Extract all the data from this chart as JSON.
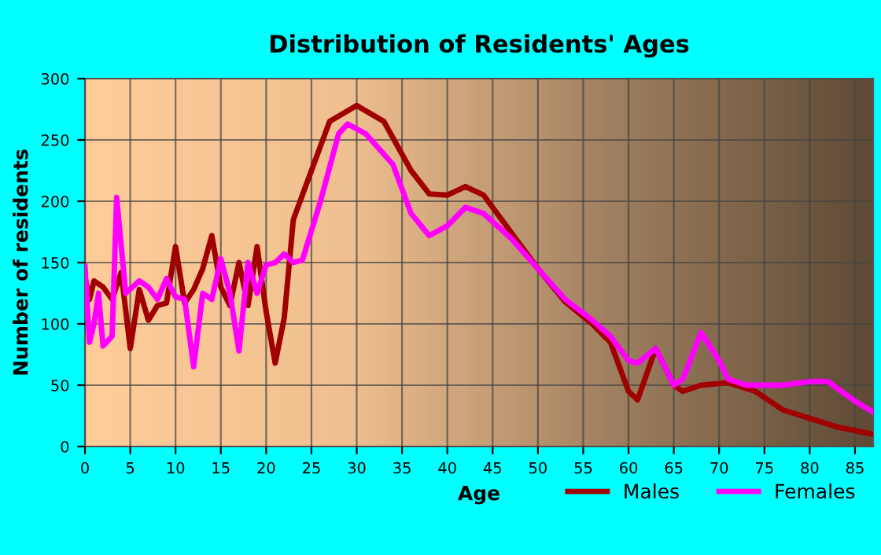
{
  "chart_data": {
    "type": "line",
    "title": "Distribution of Residents' Ages",
    "xlabel": "Age",
    "ylabel": "Number of residents",
    "xlim": [
      0,
      87
    ],
    "xticks": [
      0,
      5,
      10,
      15,
      20,
      25,
      30,
      35,
      40,
      45,
      50,
      55,
      60,
      65,
      70,
      75,
      80,
      85
    ],
    "ylim": [
      0,
      300
    ],
    "yticks": [
      0,
      50,
      100,
      150,
      200,
      250,
      300
    ],
    "grid": true,
    "legend": "bottom right",
    "series": [
      {
        "name": "Males",
        "color": "#a00000",
        "x": [
          0,
          0.5,
          1,
          2,
          3,
          4,
          5,
          6,
          7,
          8,
          9,
          10,
          11,
          12,
          13,
          14,
          15,
          16,
          17,
          18,
          19,
          20,
          21,
          22,
          23,
          25,
          27,
          30,
          33,
          36,
          38,
          40,
          42,
          44,
          47,
          50,
          53,
          56,
          58,
          60,
          61,
          63,
          65,
          66,
          68,
          71,
          74,
          77,
          80,
          83,
          87
        ],
        "values": [
          138,
          120,
          135,
          130,
          120,
          142,
          80,
          128,
          103,
          115,
          117,
          163,
          117,
          128,
          145,
          172,
          130,
          115,
          150,
          115,
          163,
          110,
          68,
          105,
          185,
          225,
          265,
          278,
          265,
          225,
          206,
          205,
          212,
          205,
          175,
          145,
          118,
          100,
          85,
          45,
          38,
          80,
          50,
          45,
          50,
          52,
          45,
          30,
          23,
          16,
          10
        ]
      },
      {
        "name": "Females",
        "color": "#ff00ff",
        "x": [
          0,
          0.5,
          1,
          1.5,
          2,
          3,
          3.5,
          4.5,
          6,
          7,
          8,
          9,
          10,
          11,
          12,
          13,
          14,
          15,
          16,
          17,
          18,
          19,
          20,
          21,
          22,
          23,
          24,
          26,
          28,
          29,
          31,
          34,
          36,
          38,
          40,
          42,
          44,
          47,
          50,
          53,
          56,
          58,
          60,
          61,
          63,
          65,
          66,
          68,
          70,
          71,
          73,
          77,
          80,
          82,
          85,
          87
        ],
        "values": [
          147,
          85,
          100,
          125,
          82,
          90,
          203,
          125,
          135,
          130,
          120,
          137,
          122,
          120,
          65,
          125,
          120,
          153,
          125,
          78,
          150,
          125,
          148,
          150,
          157,
          150,
          152,
          200,
          255,
          263,
          255,
          230,
          190,
          172,
          180,
          195,
          190,
          170,
          145,
          120,
          103,
          90,
          70,
          68,
          80,
          50,
          55,
          93,
          70,
          55,
          50,
          50,
          53,
          53,
          37,
          28
        ]
      }
    ]
  }
}
